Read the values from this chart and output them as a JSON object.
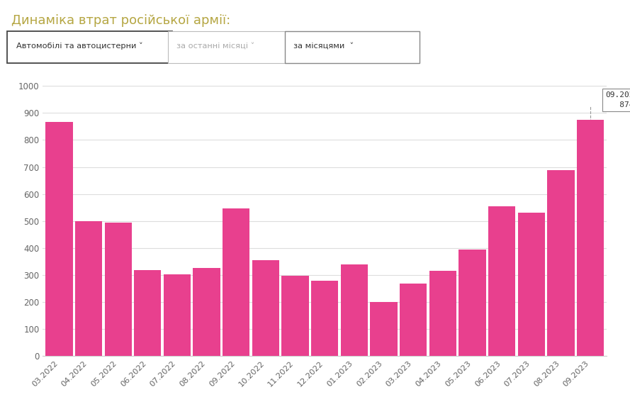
{
  "title": "Динаміка втрат російської армії:",
  "title_color": "#b5a642",
  "dropdown1_text": "Автомобілі та автоцистерни ∨",
  "dropdown2_text": "за останні місяці ∨",
  "dropdown3_text": "за місяцями",
  "categories": [
    "03.2022",
    "04.2022",
    "05.2022",
    "06.2022",
    "07.2022",
    "08.2022",
    "09.2022",
    "10.2022",
    "11.2022",
    "12.2022",
    "01.2023",
    "02.2023",
    "03.2023",
    "04.2023",
    "05.2023",
    "06.2023",
    "07.2023",
    "08.2023",
    "09.2023"
  ],
  "values": [
    866,
    500,
    493,
    317,
    302,
    325,
    547,
    355,
    296,
    278,
    340,
    199,
    269,
    315,
    395,
    554,
    530,
    689,
    874
  ],
  "bar_color": "#e8408e",
  "ylim": [
    0,
    1050
  ],
  "yticks": [
    0,
    100,
    200,
    300,
    400,
    500,
    600,
    700,
    800,
    900,
    1000
  ],
  "background_color": "#ffffff",
  "grid_color": "#dddddd",
  "axis_label_color": "#666666"
}
